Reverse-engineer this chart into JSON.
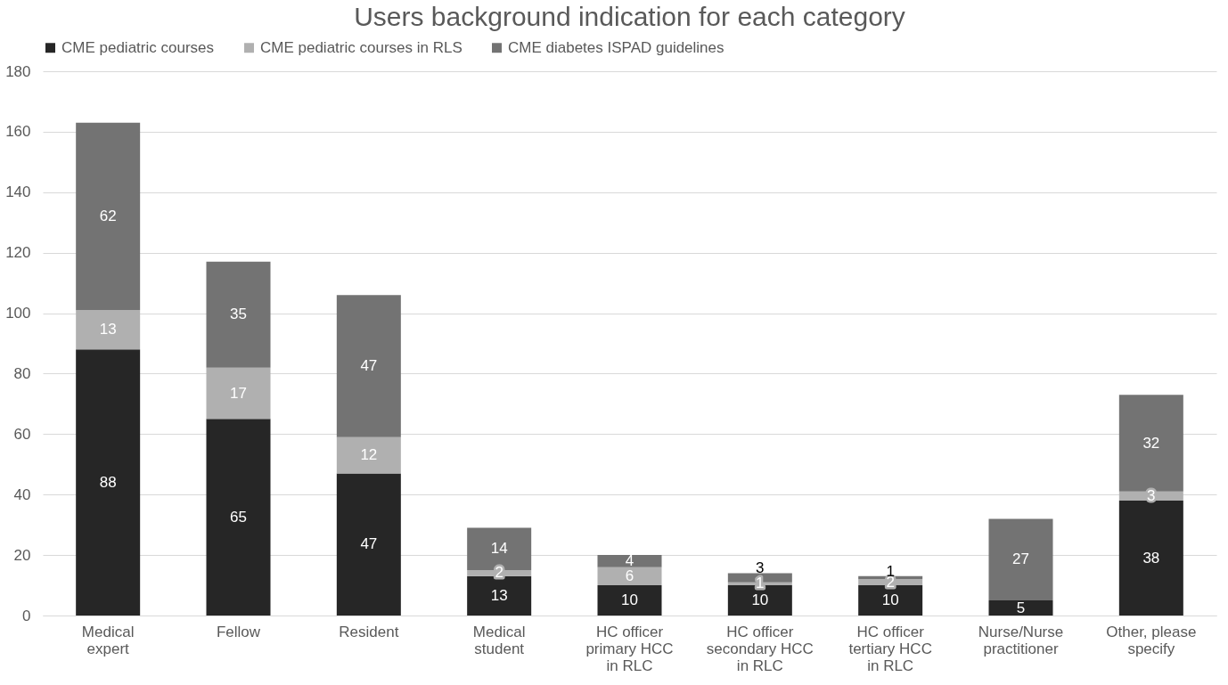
{
  "chart_data": {
    "type": "bar",
    "title": "Users background indication for each category",
    "stacked": true,
    "data_labels": true,
    "legend": "top",
    "grid": "y",
    "categories": [
      "Medical expert",
      "Fellow",
      "Resident",
      "Medical student",
      "HC officer primary HCC in RLC",
      "HC officer secondary HCC in RLC",
      "HC officer tertiary HCC in RLC",
      "Nurse/Nurse practitioner",
      "Other, please specify"
    ],
    "series": [
      {
        "name": "CME pediatric courses",
        "color": "#262626",
        "values": [
          88,
          65,
          47,
          13,
          10,
          10,
          10,
          5,
          38
        ]
      },
      {
        "name": "CME pediatric courses in RLS",
        "color": "#b0b0b0",
        "values": [
          13,
          17,
          12,
          2,
          6,
          1,
          2,
          null,
          3
        ]
      },
      {
        "name": "CME diabetes ISPAD guidelines",
        "color": "#737373",
        "values": [
          62,
          35,
          47,
          14,
          4,
          3,
          1,
          27,
          32
        ]
      }
    ],
    "ylim": [
      0,
      180
    ],
    "yticks": [
      0,
      20,
      40,
      60,
      80,
      100,
      120,
      140,
      160,
      180
    ]
  }
}
